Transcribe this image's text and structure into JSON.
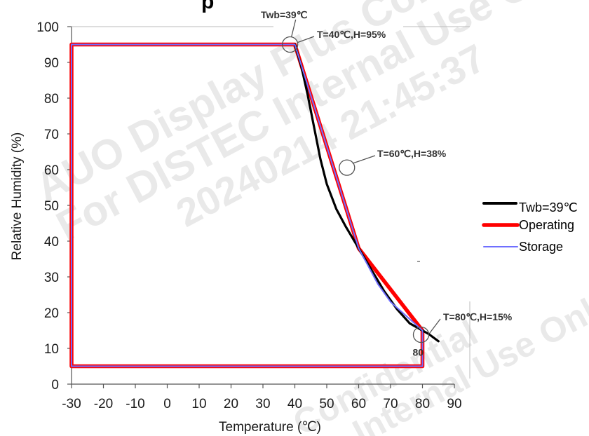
{
  "chart_data": {
    "type": "line",
    "xlabel": "Temperature (℃)",
    "ylabel": "Relative Humidity (%)",
    "xlim": [
      -30,
      90
    ],
    "ylim": [
      0,
      100
    ],
    "x_ticks": [
      "-30",
      "-20",
      "-10",
      "0",
      "10",
      "20",
      "30",
      "40",
      "50",
      "60",
      "70",
      "80",
      "90"
    ],
    "y_ticks": [
      "0",
      "10",
      "20",
      "30",
      "40",
      "50",
      "60",
      "70",
      "80",
      "90",
      "100"
    ],
    "grid": false,
    "legend_position": "right",
    "series": [
      {
        "name": "Twb=39℃",
        "color": "#000000",
        "points": [
          [
            40,
            95
          ],
          [
            42,
            89
          ],
          [
            44,
            81
          ],
          [
            46,
            72
          ],
          [
            48,
            63
          ],
          [
            50,
            56
          ],
          [
            53,
            49
          ],
          [
            56,
            44
          ],
          [
            60,
            38
          ],
          [
            64,
            32
          ],
          [
            68,
            26
          ],
          [
            72,
            21
          ],
          [
            76,
            17
          ],
          [
            80,
            15
          ],
          [
            82,
            14
          ],
          [
            85,
            12
          ]
        ]
      },
      {
        "name": "Operating",
        "color": "#ff0000",
        "points": [
          [
            -30,
            5
          ],
          [
            -30,
            95
          ],
          [
            40,
            95
          ],
          [
            60,
            38
          ],
          [
            80,
            15
          ],
          [
            80,
            5
          ],
          [
            -30,
            5
          ]
        ]
      },
      {
        "name": "Storage",
        "color": "#6f6fff",
        "points": [
          [
            -30,
            5
          ],
          [
            -30,
            95
          ],
          [
            40,
            95
          ],
          [
            60,
            38
          ],
          [
            63,
            33
          ],
          [
            66,
            28
          ],
          [
            70,
            23
          ],
          [
            75,
            19
          ],
          [
            80,
            15
          ],
          [
            80,
            5
          ],
          [
            -30,
            5
          ]
        ]
      }
    ],
    "annotations": [
      {
        "text": "Twb=39℃",
        "x": 38.5,
        "y": 95
      },
      {
        "text": "T=40℃,H=95%",
        "x": 40,
        "y": 95
      },
      {
        "text": "T=60℃,H=38%",
        "x": 55,
        "y": 59
      },
      {
        "text": "T=80℃,H=15%",
        "x": 80,
        "y": 15
      }
    ],
    "point_label": "80"
  },
  "watermarks": [
    "AUO Display Plus Confidential",
    "For DISTEC Internal Use Only",
    "20240214 21:45:37",
    "Confidential",
    "Internal Use Only"
  ],
  "title_fragment": "p"
}
